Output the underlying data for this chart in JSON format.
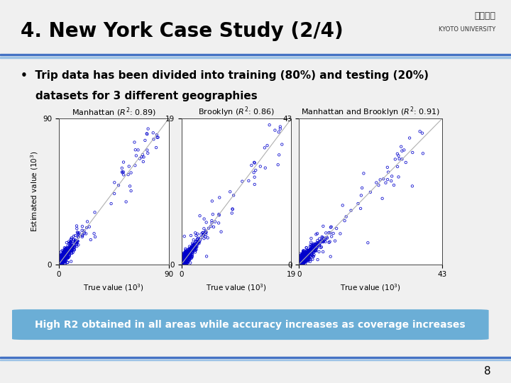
{
  "title": "4. New York Case Study (2/4)",
  "bullet_text_line1": "•  Trip data has been divided into training (80%) and testing (20%)",
  "bullet_text_line2": "    datasets for 3 different geographies",
  "highlight_text": "High R2 obtained in all areas while accuracy increases as coverage increases",
  "highlight_bg": "#6baed6",
  "highlight_text_color": "#ffffff",
  "bg_color": "#f0f0f0",
  "title_color": "#000000",
  "separator_color": "#5b9bd5",
  "page_number": "8",
  "subplots": [
    {
      "title": "Manhattan ($R^2$: 0.89)",
      "xlim": [
        0,
        90
      ],
      "ylim": [
        0,
        90
      ],
      "xticks": [
        0,
        90
      ],
      "yticks": [
        0,
        90
      ],
      "xlabel": "True value ($10^3$)",
      "ylabel": "Estimated value ($10^3$)"
    },
    {
      "title": "Brooklyn ($R^2$: 0.86)",
      "xlim": [
        0,
        19
      ],
      "ylim": [
        0,
        19
      ],
      "xticks": [
        0,
        19
      ],
      "yticks": [
        0,
        19
      ],
      "xlabel": "True value ($10^3$)",
      "ylabel": ""
    },
    {
      "title": "Manhattan and Brooklyn ($R^2$: 0.91)",
      "xlim": [
        0,
        43
      ],
      "ylim": [
        0,
        43
      ],
      "xticks": [
        0,
        43
      ],
      "yticks": [
        0,
        43
      ],
      "xlabel": "True value ($10^3$)",
      "ylabel": ""
    }
  ],
  "scatter_color": "#0000cc",
  "diag_line_color": "#b0b0b0",
  "random_seed": 42
}
